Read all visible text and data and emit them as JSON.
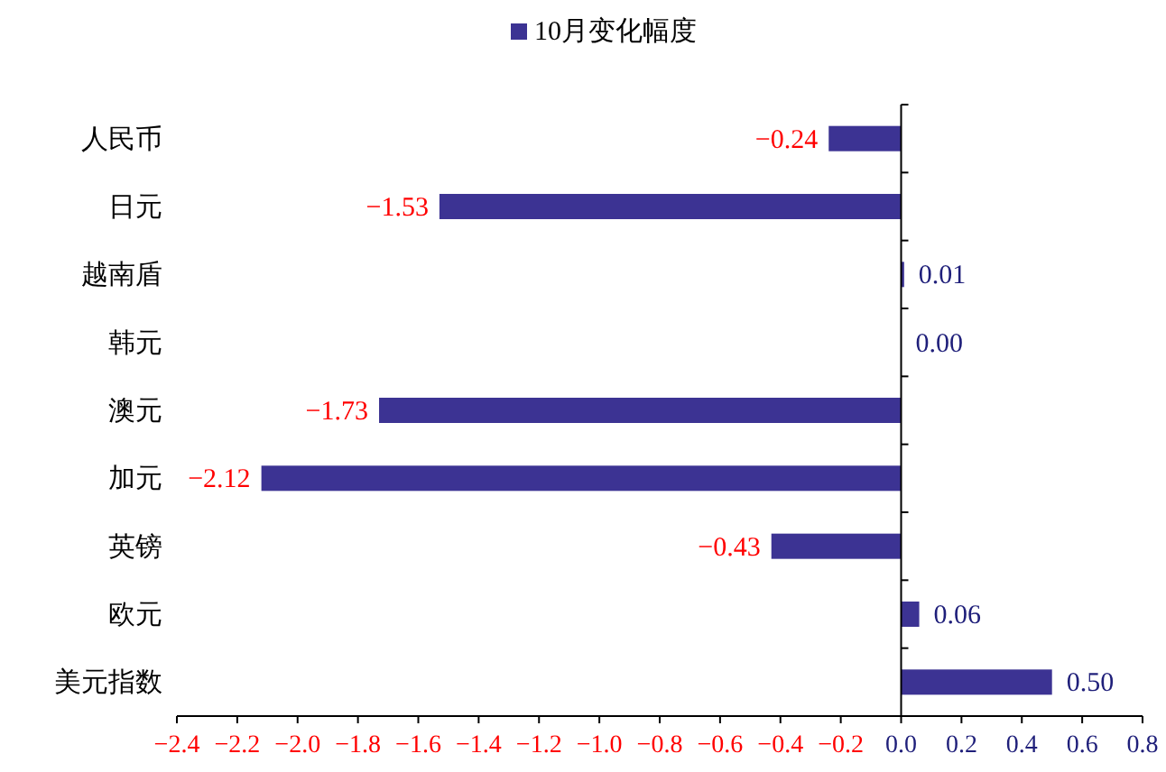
{
  "chart_data": {
    "type": "bar",
    "orientation": "horizontal",
    "legend": "top",
    "categories": [
      "人民币",
      "日元",
      "越南盾",
      "韩元",
      "澳元",
      "加元",
      "英镑",
      "欧元",
      "美元指数"
    ],
    "series": [
      {
        "name": "10月变化幅度",
        "color": "#3c3393",
        "values": [
          -0.24,
          -1.53,
          0.01,
          0.0,
          -1.73,
          -2.12,
          -0.43,
          0.06,
          0.5
        ]
      }
    ],
    "value_labels": [
      "−0.24",
      "−1.53",
      "0.01",
      "0.00",
      "−1.73",
      "−2.12",
      "−0.43",
      "0.06",
      "0.50"
    ],
    "xlim": [
      -2.4,
      0.8
    ],
    "xticks": [
      {
        "value": -2.4,
        "label": "−2.4"
      },
      {
        "value": -2.2,
        "label": "−2.2"
      },
      {
        "value": -2.0,
        "label": "−2.0"
      },
      {
        "value": -1.8,
        "label": "−1.8"
      },
      {
        "value": -1.6,
        "label": "−1.6"
      },
      {
        "value": -1.4,
        "label": "−1.4"
      },
      {
        "value": -1.2,
        "label": "−1.2"
      },
      {
        "value": -1.0,
        "label": "−1.0"
      },
      {
        "value": -0.8,
        "label": "−0.8"
      },
      {
        "value": -0.6,
        "label": "−0.6"
      },
      {
        "value": -0.4,
        "label": "−0.4"
      },
      {
        "value": -0.2,
        "label": "−0.2"
      },
      {
        "value": 0,
        "label": "0.0"
      },
      {
        "value": 0.2,
        "label": "0.2"
      },
      {
        "value": 0.4,
        "label": "0.4"
      },
      {
        "value": 0.6,
        "label": "0.6"
      },
      {
        "value": 0.8,
        "label": "0.8"
      }
    ]
  }
}
